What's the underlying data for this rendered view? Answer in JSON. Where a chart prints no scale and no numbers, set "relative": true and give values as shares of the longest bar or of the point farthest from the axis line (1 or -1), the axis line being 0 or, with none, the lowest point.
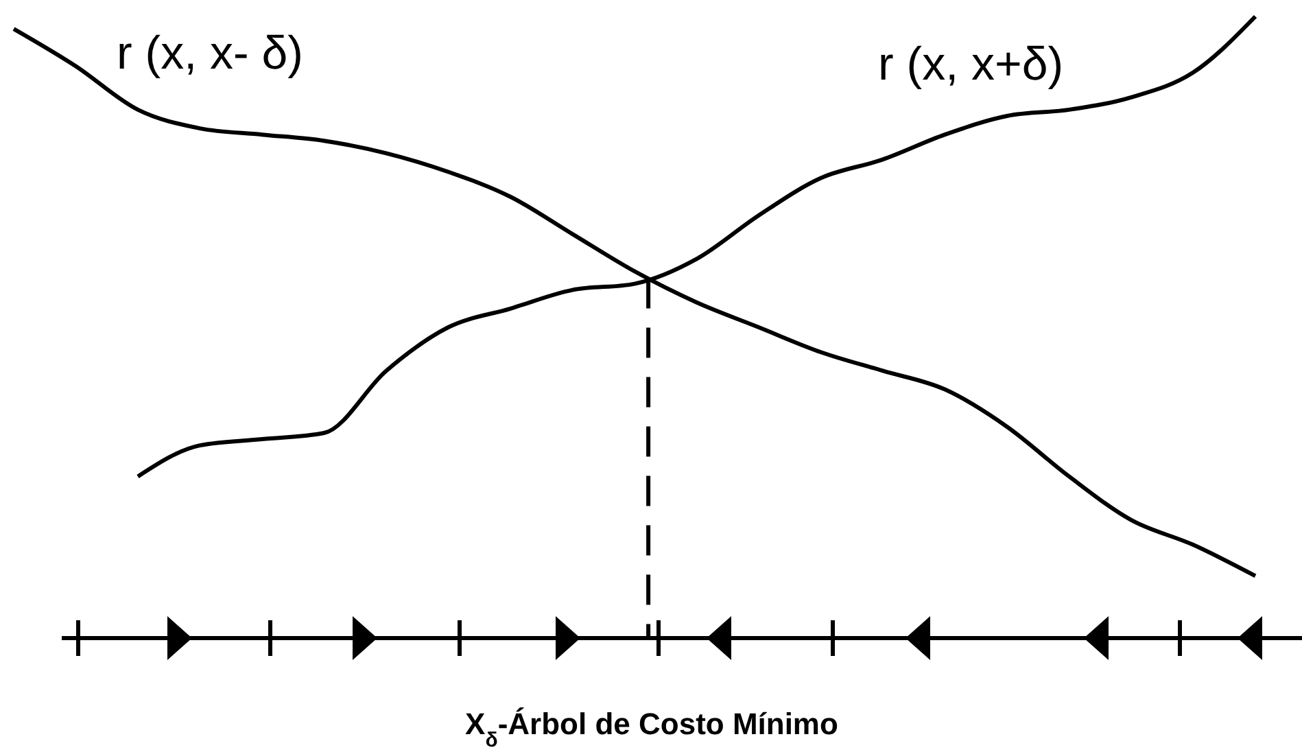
{
  "chart_data": {
    "type": "line",
    "relative": true,
    "xlabel": "X$_{δ}$-Árbol de Costo Mínimo",
    "line_style": "solid",
    "categories": [
      null,
      null,
      null,
      null,
      null,
      null,
      null,
      null,
      null,
      null,
      null,
      null,
      null,
      null,
      null,
      null,
      null,
      null,
      null,
      null,
      null
    ],
    "series": [
      {
        "name": "r (x, x- δ)",
        "color": "#000000",
        "values": [
          0.98,
          0.92,
          0.85,
          0.82,
          0.81,
          0.8,
          0.78,
          0.75,
          0.71,
          0.65,
          0.59,
          0.54,
          0.5,
          0.46,
          0.43,
          0.4,
          0.34,
          0.26,
          0.19,
          0.15,
          0.1
        ]
      },
      {
        "name": "r (x, x+δ)",
        "color": "#000000",
        "values": [
          null,
          null,
          0.26,
          0.31,
          0.32,
          0.33,
          0.43,
          0.5,
          0.53,
          0.56,
          0.57,
          0.61,
          0.68,
          0.74,
          0.77,
          0.81,
          0.84,
          0.85,
          0.87,
          0.91,
          1.0
        ]
      }
    ]
  }
}
